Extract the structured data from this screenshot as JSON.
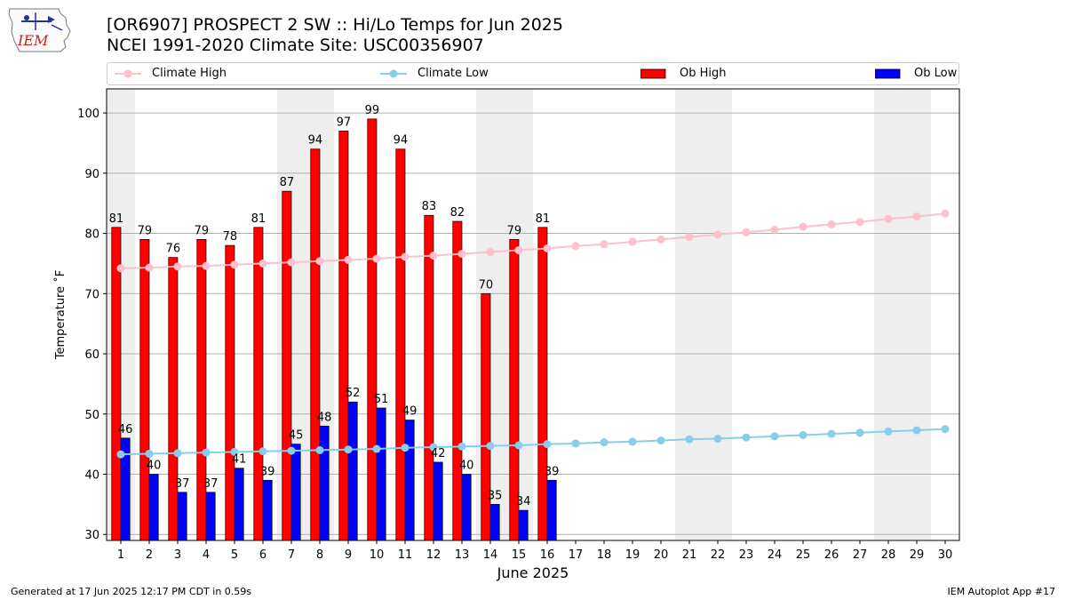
{
  "header": {
    "logo_text": "IEM",
    "title_line1": "[OR6907] PROSPECT 2 SW :: Hi/Lo Temps for Jun 2025",
    "title_line2": "NCEI 1991-2020 Climate Site: USC00356907"
  },
  "legend": {
    "climate_high": "Climate High",
    "climate_low": "Climate Low",
    "ob_high": "Ob High",
    "ob_low": "Ob Low"
  },
  "colors": {
    "ob_high": "#ff0000",
    "ob_low": "#0000ff",
    "climate_high": "#ffc0cb",
    "climate_low": "#87ceeb",
    "weekend_shade": "#eeeeee",
    "grid": "#b0b0b0"
  },
  "footer": {
    "left": "Generated at 17 Jun 2025 12:17 PM CDT in 0.59s",
    "right": "IEM Autoplot App #17"
  },
  "chart_data": {
    "type": "bar",
    "xlabel": "June 2025",
    "ylabel": "Temperature ˚F",
    "ylim": [
      29,
      104
    ],
    "yticks": [
      30,
      40,
      50,
      60,
      70,
      80,
      90,
      100
    ],
    "days": [
      1,
      2,
      3,
      4,
      5,
      6,
      7,
      8,
      9,
      10,
      11,
      12,
      13,
      14,
      15,
      16,
      17,
      18,
      19,
      20,
      21,
      22,
      23,
      24,
      25,
      26,
      27,
      28,
      29,
      30
    ],
    "shaded_days": [
      1,
      7,
      8,
      14,
      15,
      21,
      22,
      28,
      29
    ],
    "grid": "horizontal",
    "legend_position": "top",
    "series": [
      {
        "name": "Ob High",
        "kind": "bar",
        "values": [
          81,
          79,
          76,
          79,
          78,
          81,
          87,
          94,
          97,
          99,
          94,
          83,
          82,
          70,
          79,
          81
        ],
        "labels": true
      },
      {
        "name": "Ob Low",
        "kind": "bar",
        "values": [
          46,
          40,
          37,
          37,
          41,
          39,
          45,
          48,
          52,
          51,
          49,
          42,
          40,
          35,
          34,
          39
        ],
        "labels": true
      },
      {
        "name": "Climate High",
        "kind": "line",
        "values": [
          74.2,
          74.3,
          74.5,
          74.6,
          74.8,
          75.0,
          75.2,
          75.4,
          75.6,
          75.8,
          76.1,
          76.3,
          76.6,
          76.9,
          77.2,
          77.5,
          77.9,
          78.2,
          78.6,
          79.0,
          79.4,
          79.8,
          80.2,
          80.6,
          81.1,
          81.5,
          81.9,
          82.4,
          82.8,
          83.3
        ]
      },
      {
        "name": "Climate Low",
        "kind": "line",
        "values": [
          43.3,
          43.4,
          43.5,
          43.6,
          43.7,
          43.8,
          43.9,
          44.0,
          44.1,
          44.2,
          44.4,
          44.5,
          44.6,
          44.7,
          44.8,
          45.0,
          45.1,
          45.3,
          45.4,
          45.6,
          45.8,
          45.9,
          46.1,
          46.3,
          46.5,
          46.7,
          46.9,
          47.1,
          47.3,
          47.5
        ]
      }
    ]
  }
}
